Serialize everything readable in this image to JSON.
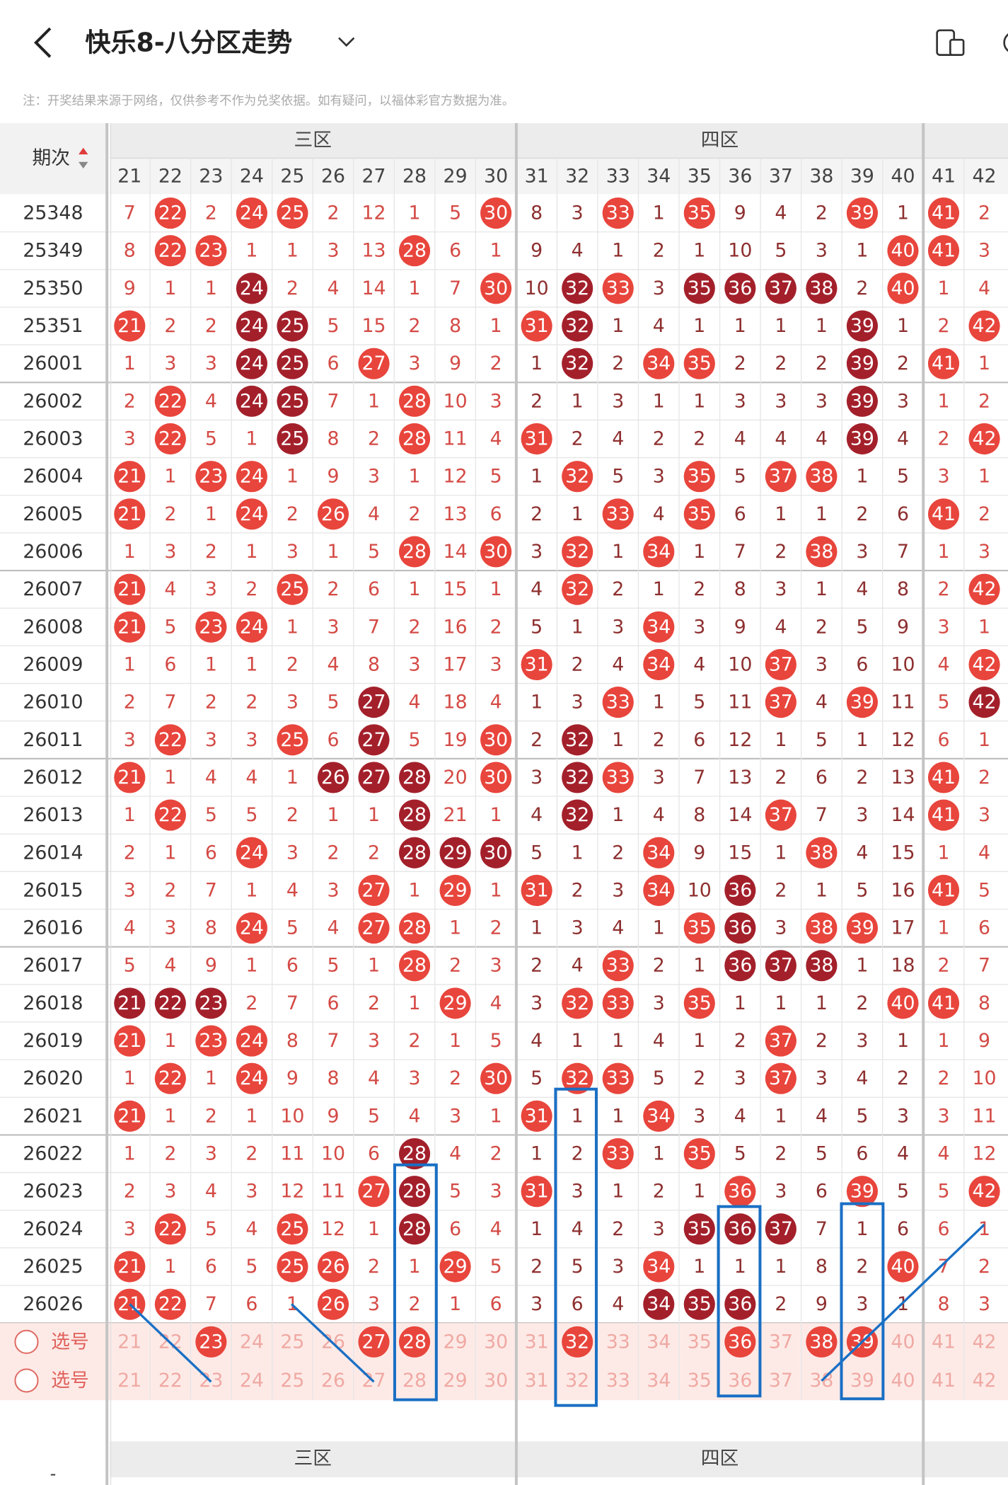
{
  "header": {
    "title": "快乐8-八分区走势",
    "note": "注：开奖结果来源于网络，仅供参考不作为兑奖依据。如有疑问，以福体彩官方数据为准。"
  },
  "table": {
    "period_header": "期次",
    "zones": [
      "三区",
      "四区"
    ],
    "columns": [
      21,
      22,
      23,
      24,
      25,
      26,
      27,
      28,
      29,
      30,
      31,
      32,
      33,
      34,
      35,
      36,
      37,
      38,
      39,
      40,
      41,
      42
    ],
    "rows": [
      {
        "period": "25348",
        "values": [
          7,
          22,
          2,
          24,
          25,
          2,
          12,
          1,
          5,
          30,
          8,
          3,
          33,
          1,
          35,
          9,
          4,
          2,
          39,
          1,
          41,
          2
        ],
        "dark": "......................"
      },
      {
        "period": "25349",
        "values": [
          8,
          22,
          23,
          1,
          1,
          3,
          13,
          28,
          6,
          1,
          9,
          4,
          1,
          2,
          1,
          10,
          5,
          3,
          1,
          40,
          41,
          3
        ],
        "dark": "......................"
      },
      {
        "period": "25350",
        "values": [
          9,
          1,
          1,
          24,
          2,
          4,
          14,
          1,
          7,
          30,
          10,
          32,
          33,
          3,
          35,
          36,
          37,
          38,
          2,
          40,
          1,
          4
        ],
        "dark": "...d.......d..dddd...."
      },
      {
        "period": "25351",
        "values": [
          21,
          2,
          2,
          24,
          25,
          5,
          15,
          2,
          8,
          1,
          31,
          32,
          1,
          4,
          1,
          1,
          1,
          1,
          39,
          1,
          2,
          42
        ],
        "dark": "...dd......d......d..."
      },
      {
        "period": "26001",
        "values": [
          1,
          3,
          3,
          24,
          25,
          6,
          27,
          3,
          9,
          2,
          1,
          32,
          2,
          34,
          35,
          2,
          2,
          2,
          39,
          2,
          41,
          1
        ],
        "dark": "...dd......d......d..."
      },
      {
        "period": "26002",
        "values": [
          2,
          22,
          4,
          24,
          25,
          7,
          1,
          28,
          10,
          3,
          2,
          1,
          3,
          1,
          1,
          3,
          3,
          3,
          39,
          3,
          1,
          2
        ],
        "dark": "...dd.............d..."
      },
      {
        "period": "26003",
        "values": [
          3,
          22,
          5,
          1,
          25,
          8,
          2,
          28,
          11,
          4,
          31,
          2,
          4,
          2,
          2,
          4,
          4,
          4,
          39,
          4,
          2,
          42
        ],
        "dark": "....d.............d..."
      },
      {
        "period": "26004",
        "values": [
          21,
          1,
          23,
          24,
          1,
          9,
          3,
          1,
          12,
          5,
          1,
          32,
          5,
          3,
          35,
          5,
          37,
          38,
          1,
          5,
          3,
          1
        ],
        "dark": "......................"
      },
      {
        "period": "26005",
        "values": [
          21,
          2,
          1,
          24,
          2,
          26,
          4,
          2,
          13,
          6,
          2,
          1,
          33,
          4,
          35,
          6,
          1,
          1,
          2,
          6,
          41,
          2
        ],
        "dark": "......................"
      },
      {
        "period": "26006",
        "values": [
          1,
          3,
          2,
          1,
          3,
          1,
          5,
          28,
          14,
          30,
          3,
          32,
          1,
          34,
          1,
          7,
          2,
          38,
          3,
          7,
          1,
          3
        ],
        "dark": "......................"
      },
      {
        "period": "26007",
        "values": [
          21,
          4,
          3,
          2,
          25,
          2,
          6,
          1,
          15,
          1,
          4,
          32,
          2,
          1,
          2,
          8,
          3,
          1,
          4,
          8,
          2,
          42
        ],
        "dark": "......................"
      },
      {
        "period": "26008",
        "values": [
          21,
          5,
          23,
          24,
          1,
          3,
          7,
          2,
          16,
          2,
          5,
          1,
          3,
          34,
          3,
          9,
          4,
          2,
          5,
          9,
          3,
          1
        ],
        "dark": "......................"
      },
      {
        "period": "26009",
        "values": [
          1,
          6,
          1,
          1,
          2,
          4,
          8,
          3,
          17,
          3,
          31,
          2,
          4,
          34,
          4,
          10,
          37,
          3,
          6,
          10,
          4,
          42
        ],
        "dark": "......................"
      },
      {
        "period": "26010",
        "values": [
          2,
          7,
          2,
          2,
          3,
          5,
          27,
          4,
          18,
          4,
          1,
          3,
          33,
          1,
          5,
          11,
          37,
          4,
          39,
          11,
          5,
          42
        ],
        "dark": "......d..............d"
      },
      {
        "period": "26011",
        "values": [
          3,
          22,
          3,
          3,
          25,
          6,
          27,
          5,
          19,
          30,
          2,
          32,
          1,
          2,
          6,
          12,
          1,
          5,
          1,
          12,
          6,
          1
        ],
        "dark": "......d....d.........."
      },
      {
        "period": "26012",
        "values": [
          21,
          1,
          4,
          4,
          1,
          26,
          27,
          28,
          20,
          30,
          3,
          32,
          33,
          3,
          7,
          13,
          2,
          6,
          2,
          13,
          41,
          2
        ],
        "dark": ".....ddd...d.........."
      },
      {
        "period": "26013",
        "values": [
          1,
          22,
          5,
          5,
          2,
          1,
          1,
          28,
          21,
          1,
          4,
          32,
          1,
          4,
          8,
          14,
          37,
          7,
          3,
          14,
          41,
          3
        ],
        "dark": ".......d...d.........."
      },
      {
        "period": "26014",
        "values": [
          2,
          1,
          6,
          24,
          3,
          2,
          2,
          28,
          29,
          30,
          5,
          1,
          2,
          34,
          9,
          15,
          1,
          38,
          4,
          15,
          1,
          4
        ],
        "dark": ".......ddd............"
      },
      {
        "period": "26015",
        "values": [
          3,
          2,
          7,
          1,
          4,
          3,
          27,
          1,
          29,
          1,
          31,
          2,
          3,
          34,
          10,
          36,
          2,
          1,
          5,
          16,
          41,
          5
        ],
        "dark": "...............d......"
      },
      {
        "period": "26016",
        "values": [
          4,
          3,
          8,
          24,
          5,
          4,
          27,
          28,
          1,
          2,
          1,
          3,
          4,
          1,
          35,
          36,
          3,
          38,
          39,
          17,
          1,
          6
        ],
        "dark": "...............d......"
      },
      {
        "period": "26017",
        "values": [
          5,
          4,
          9,
          1,
          6,
          5,
          1,
          28,
          2,
          3,
          2,
          4,
          33,
          2,
          1,
          36,
          37,
          38,
          1,
          18,
          2,
          7
        ],
        "dark": "...............ddd...."
      },
      {
        "period": "26018",
        "values": [
          21,
          22,
          23,
          2,
          7,
          6,
          2,
          1,
          29,
          4,
          3,
          32,
          33,
          3,
          35,
          1,
          1,
          1,
          2,
          40,
          41,
          8
        ],
        "dark": "ddd..................."
      },
      {
        "period": "26019",
        "values": [
          21,
          1,
          23,
          24,
          8,
          7,
          3,
          2,
          1,
          5,
          4,
          1,
          1,
          4,
          1,
          2,
          37,
          2,
          3,
          1,
          1,
          9
        ],
        "dark": "......................"
      },
      {
        "period": "26020",
        "values": [
          1,
          22,
          1,
          24,
          9,
          8,
          4,
          3,
          2,
          30,
          5,
          32,
          33,
          5,
          2,
          3,
          37,
          3,
          4,
          2,
          2,
          10
        ],
        "dark": "......................"
      },
      {
        "period": "26021",
        "values": [
          21,
          1,
          2,
          1,
          10,
          9,
          5,
          4,
          3,
          1,
          31,
          1,
          1,
          34,
          3,
          4,
          1,
          4,
          5,
          3,
          3,
          11
        ],
        "dark": "......................"
      },
      {
        "period": "26022",
        "values": [
          1,
          2,
          3,
          2,
          11,
          10,
          6,
          28,
          4,
          2,
          1,
          2,
          33,
          1,
          35,
          5,
          2,
          5,
          6,
          4,
          4,
          12
        ],
        "dark": ".......d.............."
      },
      {
        "period": "26023",
        "values": [
          2,
          3,
          4,
          3,
          12,
          11,
          27,
          28,
          5,
          3,
          31,
          3,
          1,
          2,
          1,
          36,
          3,
          6,
          39,
          5,
          5,
          42
        ],
        "dark": ".......d.............."
      },
      {
        "period": "26024",
        "values": [
          3,
          22,
          5,
          4,
          25,
          12,
          1,
          28,
          6,
          4,
          1,
          4,
          2,
          3,
          35,
          36,
          37,
          7,
          1,
          6,
          6,
          1
        ],
        "dark": ".......d......ddd....."
      },
      {
        "period": "26025",
        "values": [
          21,
          1,
          6,
          5,
          25,
          26,
          2,
          1,
          29,
          5,
          2,
          5,
          3,
          34,
          1,
          1,
          1,
          8,
          2,
          40,
          7,
          2
        ],
        "dark": "......................"
      },
      {
        "period": "26026",
        "values": [
          21,
          22,
          7,
          6,
          1,
          26,
          3,
          2,
          1,
          6,
          3,
          6,
          4,
          34,
          35,
          36,
          2,
          9,
          3,
          1,
          8,
          3
        ],
        "dark": ".............ddd......"
      }
    ],
    "select_label": "选号",
    "select_rows": [
      {
        "selected": "..s...ss...s...s.ss..."
      },
      {
        "selected": "......................"
      }
    ],
    "footer_left": "-"
  }
}
